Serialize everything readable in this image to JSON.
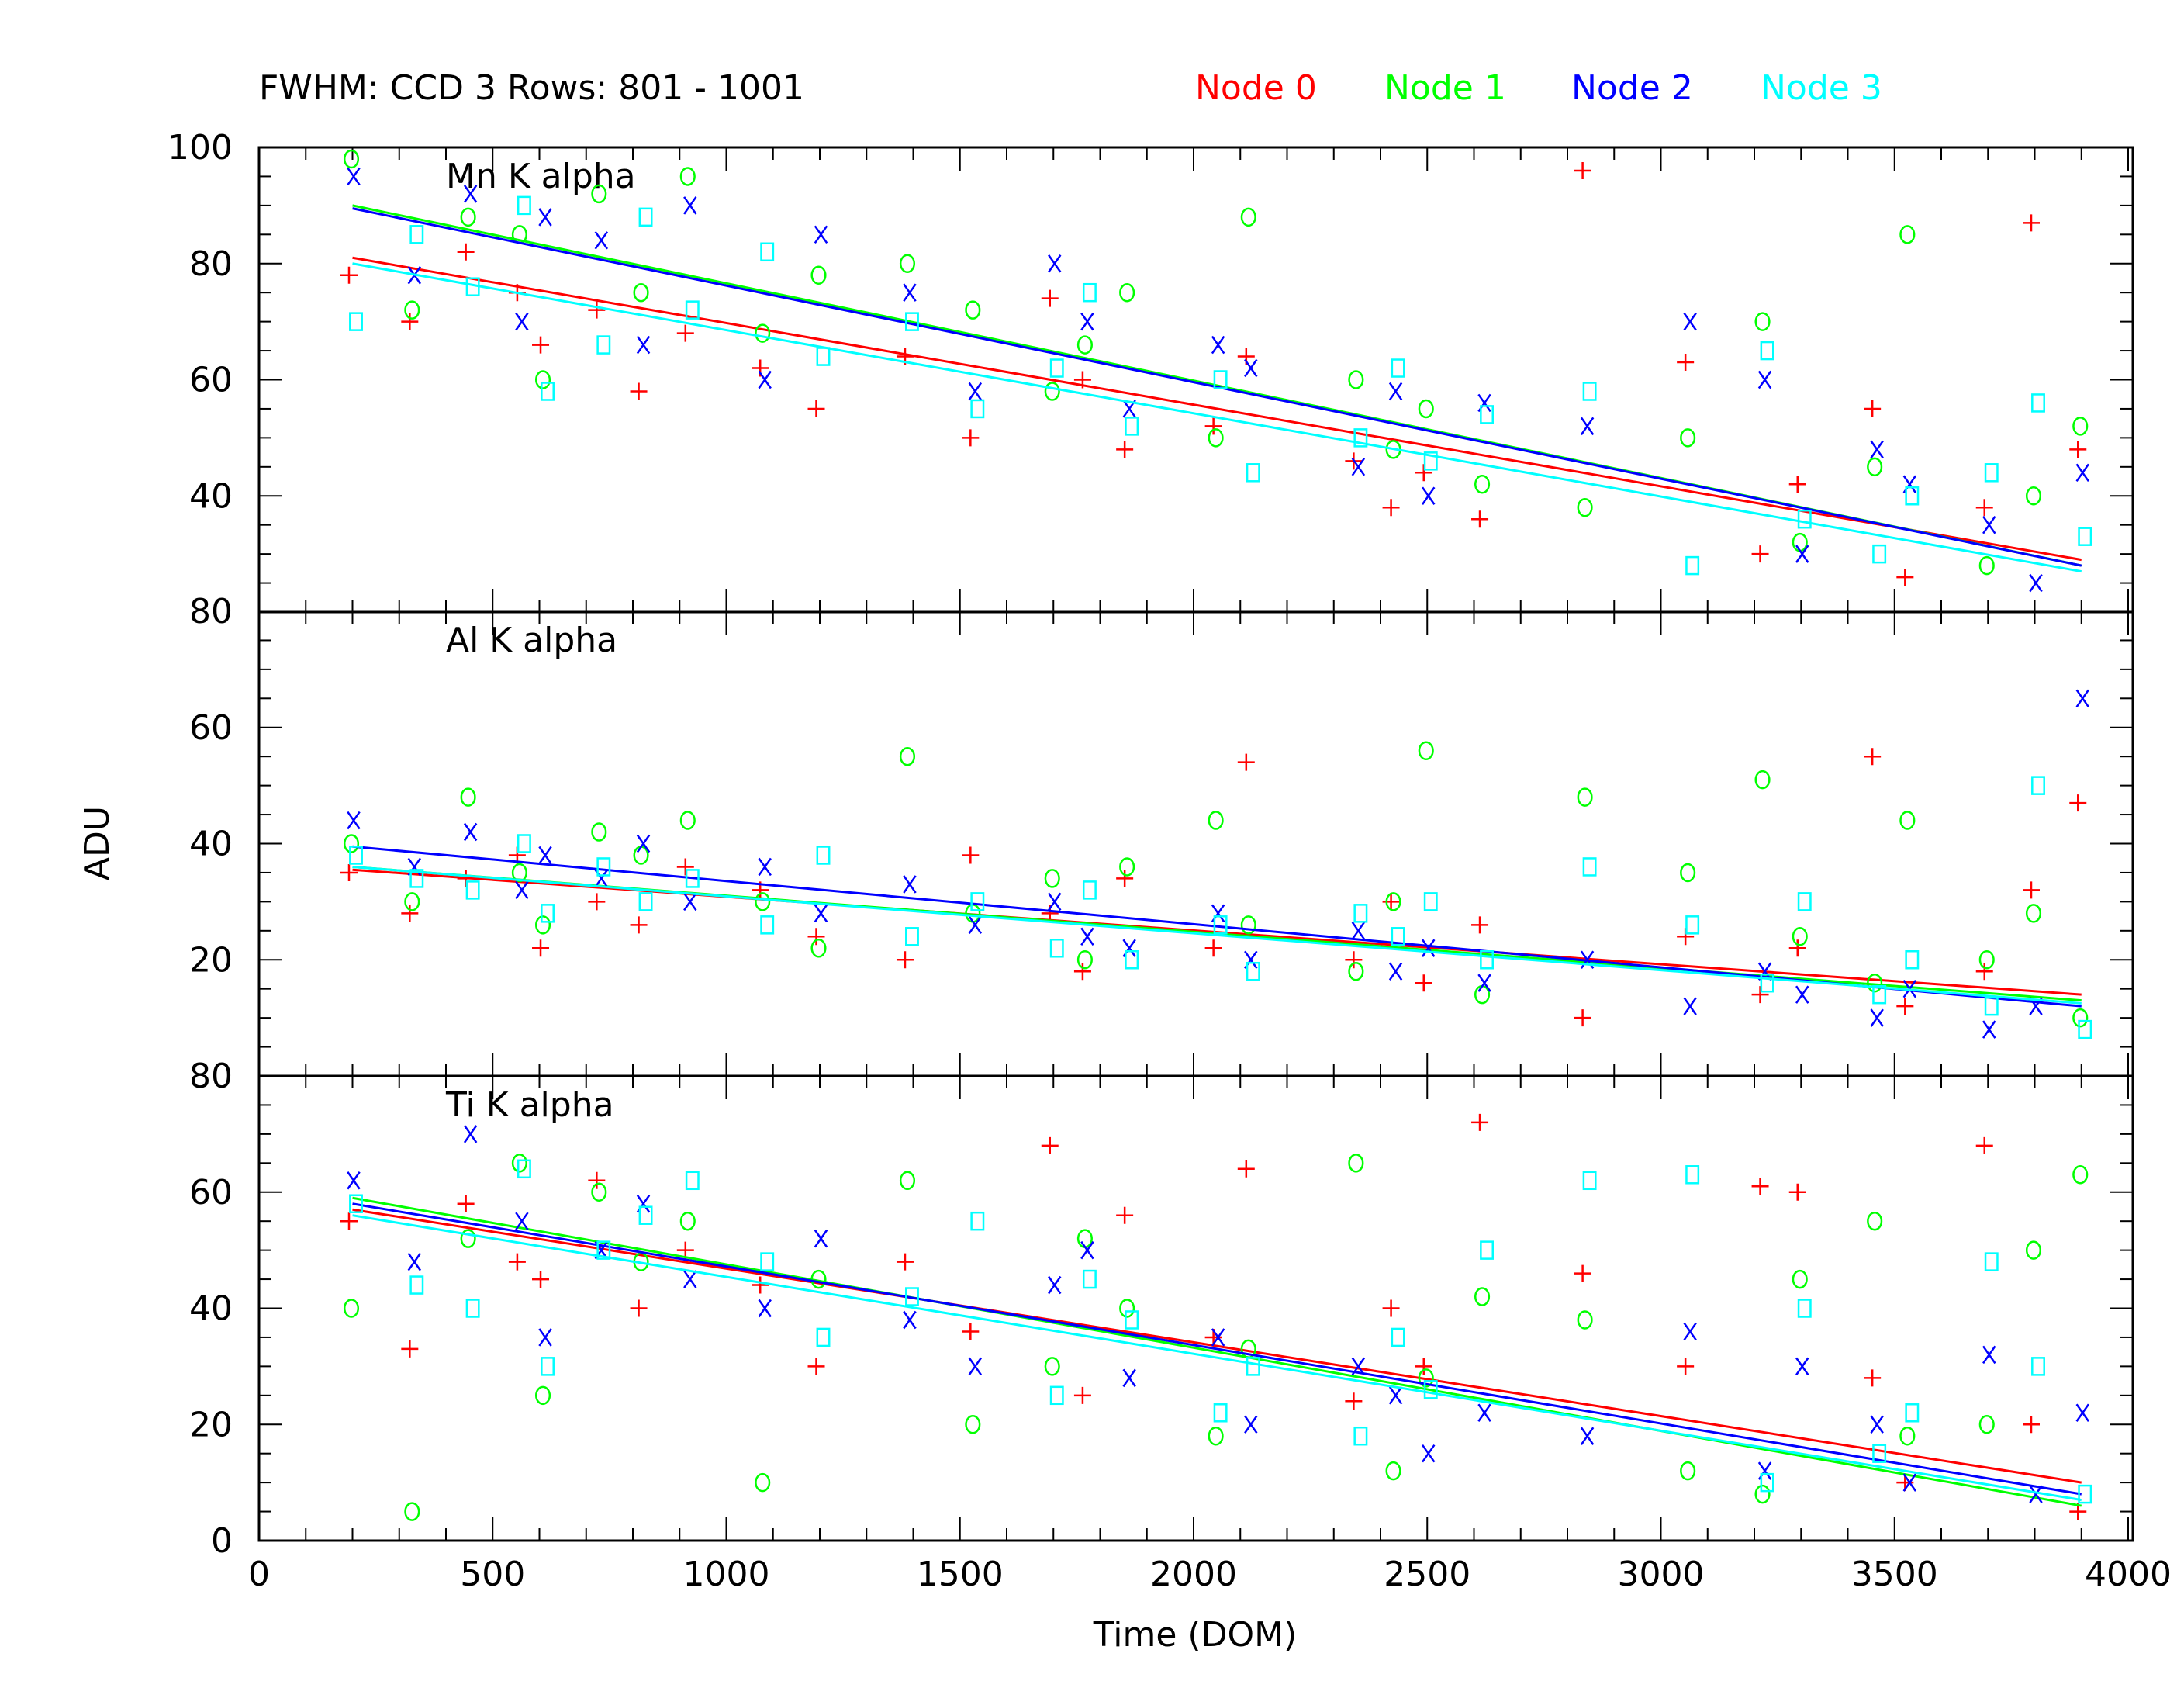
{
  "chart_data": {
    "type": "scatter",
    "title": "FWHM: CCD 3 Rows: 801 - 1001",
    "xlabel": "Time (DOM)",
    "ylabel": "ADU",
    "xlim": [
      0,
      4000
    ],
    "xticks": [
      "0",
      "500",
      "1000",
      "1500",
      "2000",
      "2500",
      "3000",
      "3500",
      "4000"
    ],
    "legend": [
      {
        "name": "Node 0",
        "color": "#ff0000",
        "marker": "plus"
      },
      {
        "name": "Node 1",
        "color": "#00ff00",
        "marker": "circle"
      },
      {
        "name": "Node 2",
        "color": "#0000ff",
        "marker": "cross"
      },
      {
        "name": "Node 3",
        "color": "#00ffff",
        "marker": "square"
      }
    ],
    "legend_placement": "top",
    "x": [
      200,
      330,
      450,
      560,
      610,
      730,
      820,
      920,
      1080,
      1200,
      1390,
      1530,
      1700,
      1770,
      1860,
      2050,
      2120,
      2350,
      2430,
      2500,
      2620,
      2840,
      3060,
      3220,
      3300,
      3460,
      3530,
      3700,
      3800,
      3900
    ],
    "panels": [
      {
        "label": "Mn K alpha",
        "ylim": [
          20,
          100
        ],
        "yticks": [
          "100",
          "80",
          "60",
          "40"
        ],
        "series": [
          {
            "name": "Node 0",
            "values": [
              78,
              70,
              82,
              75,
              66,
              72,
              58,
              68,
              62,
              55,
              64,
              50,
              74,
              60,
              48,
              52,
              64,
              46,
              38,
              44,
              36,
              96,
              63,
              30,
              42,
              55,
              26,
              38,
              87,
              48
            ],
            "fit": [
              200,
              81,
              3900,
              29
            ]
          },
          {
            "name": "Node 1",
            "values": [
              98,
              72,
              88,
              85,
              60,
              92,
              75,
              95,
              68,
              78,
              80,
              72,
              58,
              66,
              75,
              50,
              88,
              60,
              48,
              55,
              42,
              38,
              50,
              70,
              32,
              45,
              85,
              28,
              40,
              52
            ],
            "fit": [
              200,
              90,
              3900,
              28
            ]
          },
          {
            "name": "Node 2",
            "values": [
              95,
              78,
              92,
              70,
              88,
              84,
              66,
              90,
              60,
              85,
              75,
              58,
              80,
              70,
              55,
              66,
              62,
              45,
              58,
              40,
              56,
              52,
              70,
              60,
              30,
              48,
              42,
              35,
              25,
              44
            ],
            "fit": [
              200,
              89.5,
              3900,
              28
            ]
          },
          {
            "name": "Node 3",
            "values": [
              70,
              85,
              76,
              90,
              58,
              66,
              88,
              72,
              82,
              64,
              70,
              55,
              62,
              75,
              52,
              60,
              44,
              50,
              62,
              46,
              54,
              58,
              28,
              65,
              36,
              30,
              40,
              44,
              56,
              33
            ],
            "fit": [
              200,
              80,
              3900,
              27
            ]
          }
        ]
      },
      {
        "label": "Al K alpha",
        "ylim": [
          0,
          80
        ],
        "yticks": [
          "80",
          "60",
          "40",
          "20"
        ],
        "series": [
          {
            "name": "Node 0",
            "values": [
              35,
              28,
              34,
              38,
              22,
              30,
              26,
              36,
              32,
              24,
              20,
              38,
              28,
              18,
              34,
              22,
              54,
              20,
              30,
              16,
              26,
              10,
              24,
              14,
              22,
              55,
              12,
              18,
              32,
              47
            ],
            "fit": [
              200,
              35.5,
              3900,
              14
            ]
          },
          {
            "name": "Node 1",
            "values": [
              40,
              30,
              48,
              35,
              26,
              42,
              38,
              44,
              30,
              22,
              55,
              28,
              34,
              20,
              36,
              44,
              26,
              18,
              30,
              56,
              14,
              48,
              35,
              51,
              24,
              16,
              44,
              20,
              28,
              10
            ],
            "fit": [
              200,
              36,
              3900,
              13
            ]
          },
          {
            "name": "Node 2",
            "values": [
              44,
              36,
              42,
              32,
              38,
              34,
              40,
              30,
              36,
              28,
              33,
              26,
              30,
              24,
              22,
              28,
              20,
              25,
              18,
              22,
              16,
              20,
              12,
              18,
              14,
              10,
              15,
              8,
              12,
              65
            ],
            "fit": [
              200,
              39.5,
              3900,
              12
            ]
          },
          {
            "name": "Node 3",
            "values": [
              38,
              34,
              32,
              40,
              28,
              36,
              30,
              34,
              26,
              38,
              24,
              30,
              22,
              32,
              20,
              26,
              18,
              28,
              24,
              30,
              20,
              36,
              26,
              16,
              30,
              14,
              20,
              12,
              50,
              8
            ],
            "fit": [
              200,
              36,
              3900,
              12.5
            ]
          }
        ]
      },
      {
        "label": "Ti K alpha",
        "ylim": [
          0,
          80
        ],
        "yticks": [
          "80",
          "60",
          "40",
          "20",
          "0"
        ],
        "series": [
          {
            "name": "Node 0",
            "values": [
              55,
              33,
              58,
              48,
              45,
              62,
              40,
              50,
              44,
              30,
              48,
              36,
              68,
              25,
              56,
              35,
              64,
              24,
              40,
              30,
              72,
              46,
              30,
              61,
              60,
              28,
              10,
              68,
              20,
              5
            ],
            "fit": [
              200,
              57,
              3900,
              10
            ]
          },
          {
            "name": "Node 1",
            "values": [
              40,
              5,
              52,
              65,
              25,
              60,
              48,
              55,
              10,
              45,
              62,
              20,
              30,
              52,
              40,
              18,
              33,
              65,
              12,
              28,
              42,
              38,
              12,
              8,
              45,
              55,
              18,
              20,
              50,
              63
            ],
            "fit": [
              200,
              59,
              3900,
              6
            ]
          },
          {
            "name": "Node 2",
            "values": [
              62,
              48,
              70,
              55,
              35,
              50,
              58,
              45,
              40,
              52,
              38,
              30,
              44,
              50,
              28,
              35,
              20,
              30,
              25,
              15,
              22,
              18,
              36,
              12,
              30,
              20,
              10,
              32,
              8,
              22
            ],
            "fit": [
              200,
              58,
              3900,
              8
            ]
          },
          {
            "name": "Node 3",
            "values": [
              58,
              44,
              40,
              64,
              30,
              50,
              56,
              62,
              48,
              35,
              42,
              55,
              25,
              45,
              38,
              22,
              30,
              18,
              35,
              26,
              50,
              62,
              63,
              10,
              40,
              15,
              22,
              48,
              30,
              8
            ],
            "fit": [
              200,
              56,
              3900,
              7
            ]
          }
        ]
      }
    ]
  }
}
